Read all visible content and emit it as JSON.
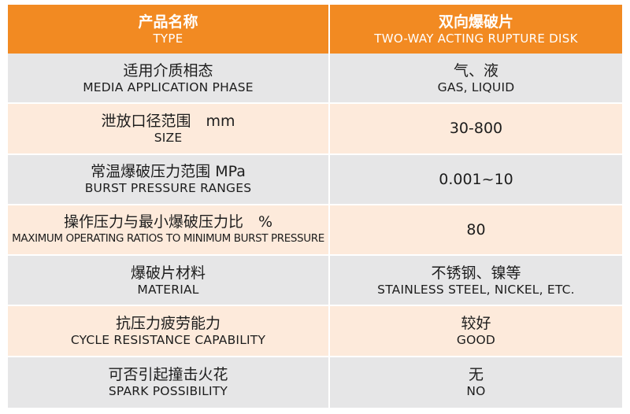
{
  "header": {
    "left_zh": "产品名称",
    "left_en": "TYPE",
    "right_zh": "双向爆破片",
    "right_en": "TWO-WAY ACTING RUPTURE DISK"
  },
  "rows": [
    {
      "zh": "适用介质相态",
      "en": "MEDIA APPLICATION PHASE",
      "value_zh": "气、液",
      "value_en": "GAS, LIQUID"
    },
    {
      "zh": "泄放口径范围　mm",
      "en": "SIZE",
      "value_zh": "30-800",
      "value_en": ""
    },
    {
      "zh": "常温爆破压力范围  MPa",
      "en": "BURST PRESSURE RANGES",
      "value_zh": "0.001~10",
      "value_en": ""
    },
    {
      "zh": "操作压力与最小爆破压力比　%",
      "en": "MAXIMUM OPERATING RATIOS TO MINIMUM BURST PRESSURE",
      "value_zh": "80",
      "value_en": ""
    },
    {
      "zh": "爆破片材料",
      "en": "MATERIAL",
      "value_zh": "不锈钢、镍等",
      "value_en": "STAINLESS STEEL, NICKEL, ETC."
    },
    {
      "zh": "抗压力疲劳能力",
      "en": "CYCLE RESISTANCE CAPABILITY",
      "value_zh": "较好",
      "value_en": "GOOD"
    },
    {
      "zh": "可否引起撞击火花",
      "en": "SPARK POSSIBILITY",
      "value_zh": "无",
      "value_en": "NO"
    }
  ],
  "colors": {
    "header": "#f28a22",
    "row_gray": "#e6e6e7",
    "row_peach": "#fdeadb"
  }
}
